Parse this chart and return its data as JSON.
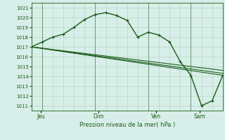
{
  "xlabel": "Pression niveau de la mer( hPa )",
  "bg_color": "#d8eee8",
  "grid_color": "#b8d8c8",
  "line_color": "#1a5c1a",
  "ylim": [
    1010.5,
    1021.5
  ],
  "yticks": [
    1011,
    1012,
    1013,
    1014,
    1015,
    1016,
    1017,
    1018,
    1019,
    1020,
    1021
  ],
  "xtick_labels": [
    "Jeu",
    "Dim",
    "Ven",
    "Sam"
  ],
  "xtick_positions": [
    0.05,
    0.35,
    0.65,
    0.88
  ],
  "total_hours": 108,
  "main_line_hours": [
    0,
    6,
    12,
    18,
    24,
    30,
    36,
    42,
    48,
    54,
    60,
    66,
    72,
    78,
    84,
    90,
    96,
    102,
    108
  ],
  "main_line_y": [
    1017.0,
    1017.5,
    1018.0,
    1018.3,
    1019.0,
    1019.8,
    1020.3,
    1020.5,
    1020.2,
    1019.7,
    1018.0,
    1018.5,
    1018.2,
    1017.5,
    1015.5,
    1014.1,
    1011.0,
    1011.5,
    1014.1
  ],
  "trend1_hours": [
    0,
    108
  ],
  "trend1_y": [
    1017.0,
    1014.1
  ],
  "trend2_hours": [
    0,
    108
  ],
  "trend2_y": [
    1017.0,
    1014.3
  ],
  "trend3_hours": [
    0,
    108
  ],
  "trend3_y": [
    1017.0,
    1014.6
  ],
  "day_lines_hours": [
    6,
    36,
    66,
    90
  ]
}
